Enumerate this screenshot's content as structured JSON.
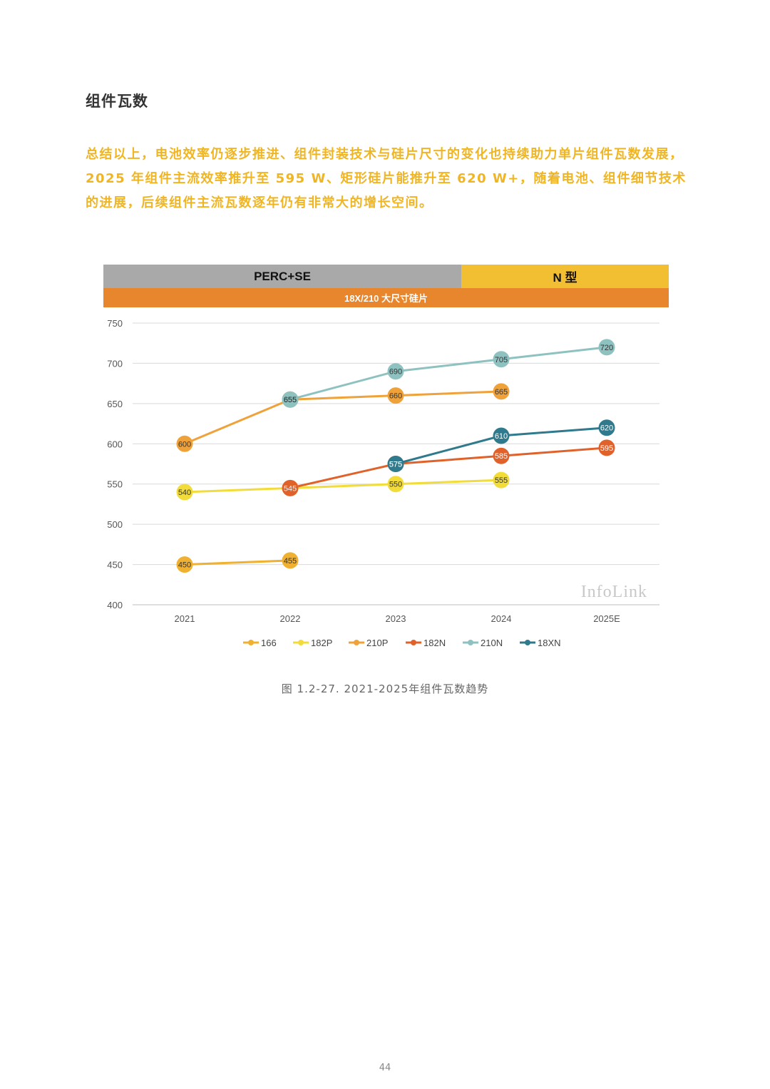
{
  "page": {
    "section_title": "组件瓦数",
    "intro": "总结以上，电池效率仍逐步推进、组件封装技术与硅片尺寸的变化也持续助力单片组件瓦数发展，2025 年组件主流效率推升至 595 W、矩形硅片能推升至 620 W+，随着电池、组件细节技术的进展，后续组件主流瓦数逐年仍有非常大的增长空间。",
    "caption": "图 1.2-27. 2021-2025年组件瓦数趋势",
    "page_number": "44"
  },
  "bands": {
    "perc": "PERC+SE",
    "n_type": "N 型",
    "size": "18X/210 大尺寸硅片"
  },
  "watermark": "InfoLink",
  "chart_data": {
    "type": "line",
    "categories": [
      "2021",
      "2022",
      "2023",
      "2024",
      "2025E"
    ],
    "ylim": [
      400,
      750
    ],
    "yticks": [
      400,
      450,
      500,
      550,
      600,
      650,
      700,
      750
    ],
    "grid": true,
    "legend_position": "bottom",
    "series": [
      {
        "name": "166",
        "color": "#f0b030",
        "values": [
          450,
          455,
          null,
          null,
          null
        ]
      },
      {
        "name": "182P",
        "color": "#f2dc3a",
        "values": [
          540,
          545,
          550,
          555,
          null
        ]
      },
      {
        "name": "210P",
        "color": "#f0a23a",
        "values": [
          600,
          655,
          660,
          665,
          null
        ]
      },
      {
        "name": "182N",
        "color": "#e0622a",
        "values": [
          null,
          545,
          575,
          585,
          595
        ]
      },
      {
        "name": "210N",
        "color": "#8ec2c0",
        "values": [
          null,
          655,
          690,
          705,
          720
        ]
      },
      {
        "name": "18XN",
        "color": "#2f7a8c",
        "values": [
          null,
          null,
          575,
          610,
          620
        ]
      }
    ]
  }
}
